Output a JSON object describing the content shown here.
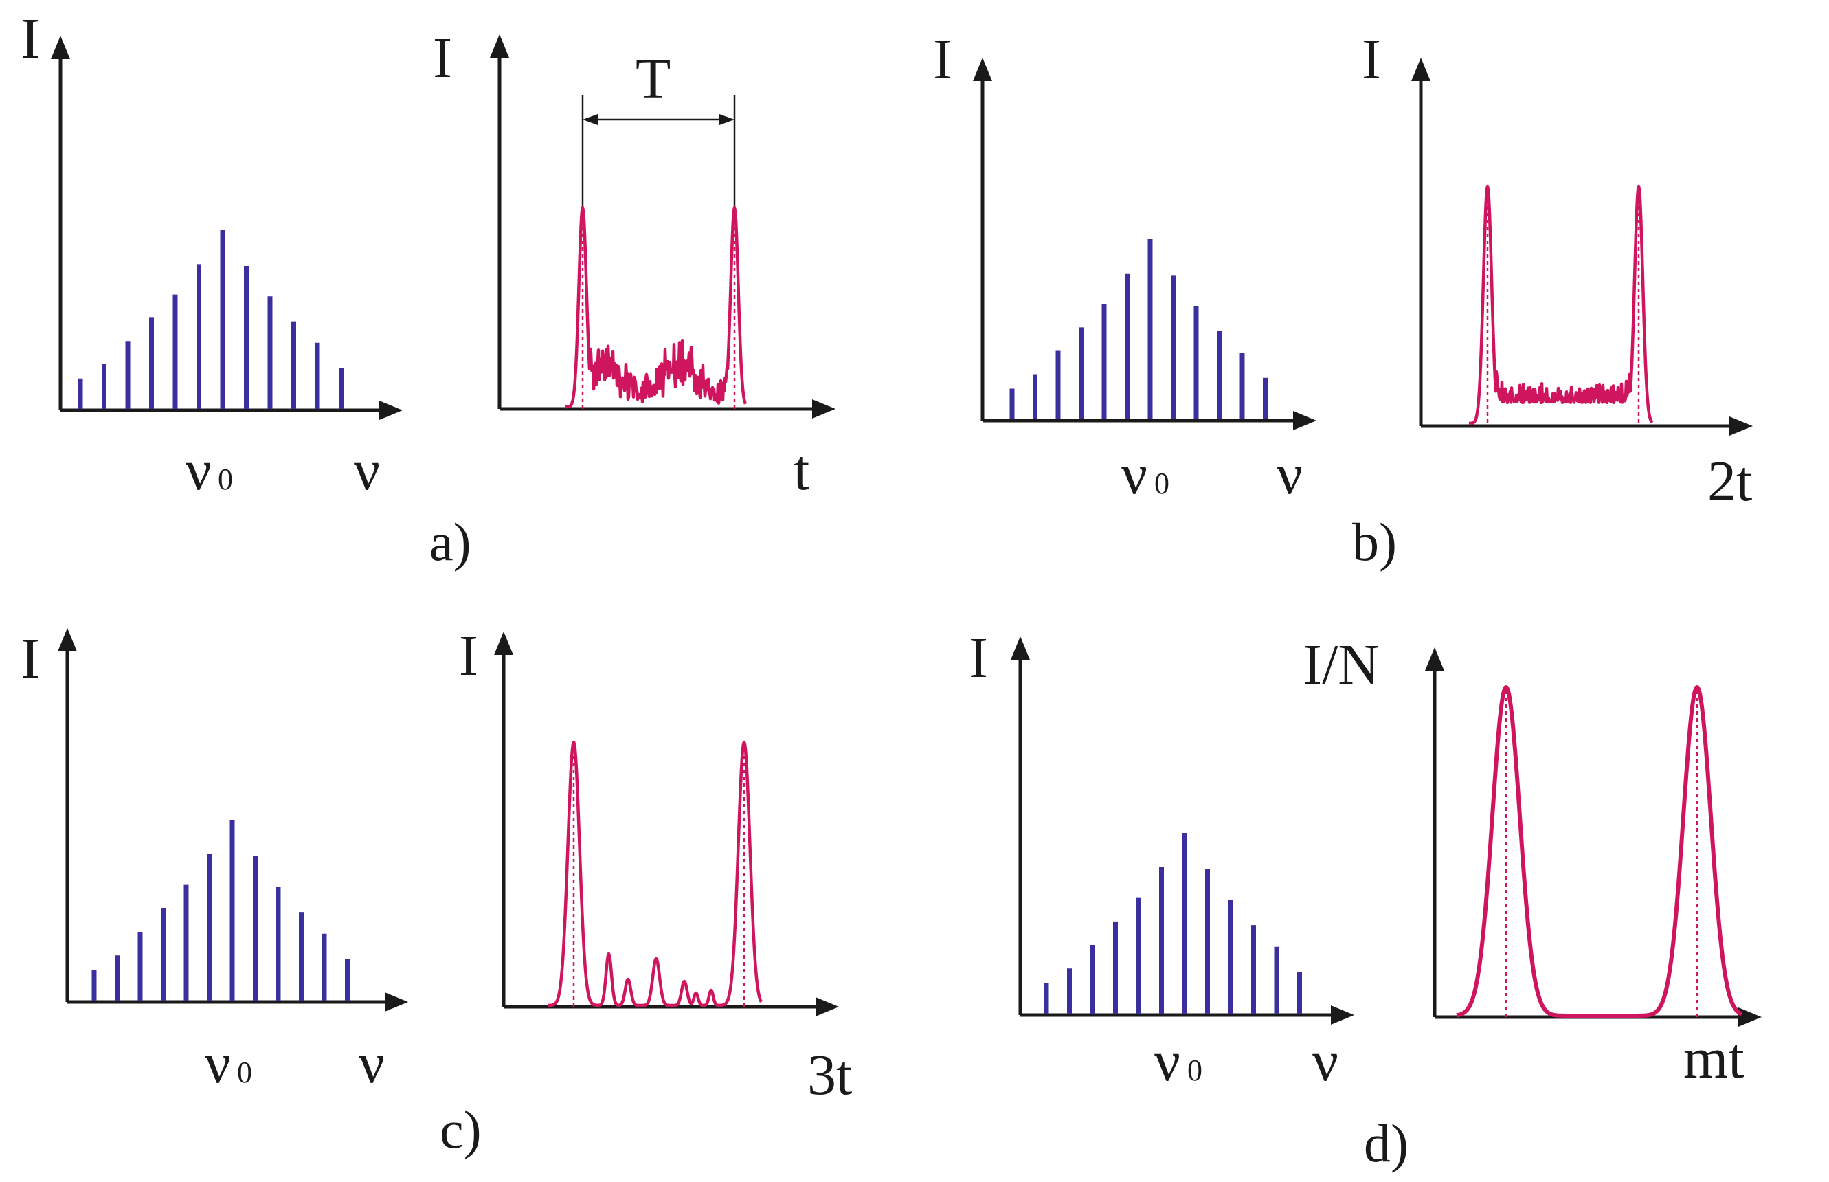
{
  "colors": {
    "spectrum": "#3b2fa0",
    "pulse": "#d0155f",
    "axis": "#1a1a1a"
  },
  "spectrum": {
    "y_label": "I",
    "x_label": "ν",
    "center_label": "ν",
    "center_subscript": "0",
    "relative_line_heights": [
      0.17,
      0.25,
      0.38,
      0.51,
      0.64,
      0.81,
      1.0,
      0.8,
      0.63,
      0.49,
      0.37,
      0.23
    ]
  },
  "panels": [
    {
      "id": "a",
      "panel_label": "a)",
      "time_y_label": "I",
      "time_x_label": "t",
      "period_label": "T",
      "background": "noisy",
      "peak_height": 0.62
    },
    {
      "id": "b",
      "panel_label": "b)",
      "time_y_label": "I",
      "time_x_label": "2t",
      "background": "noisy-flat",
      "peak_height": 0.72
    },
    {
      "id": "c",
      "panel_label": "c)",
      "time_y_label": "I",
      "time_x_label": "3t",
      "background": "sparse",
      "peak_height": 0.84
    },
    {
      "id": "d",
      "panel_label": "d)",
      "time_y_label": "I/N",
      "time_x_label": "mt",
      "background": "none",
      "peak_height": 0.9
    }
  ]
}
